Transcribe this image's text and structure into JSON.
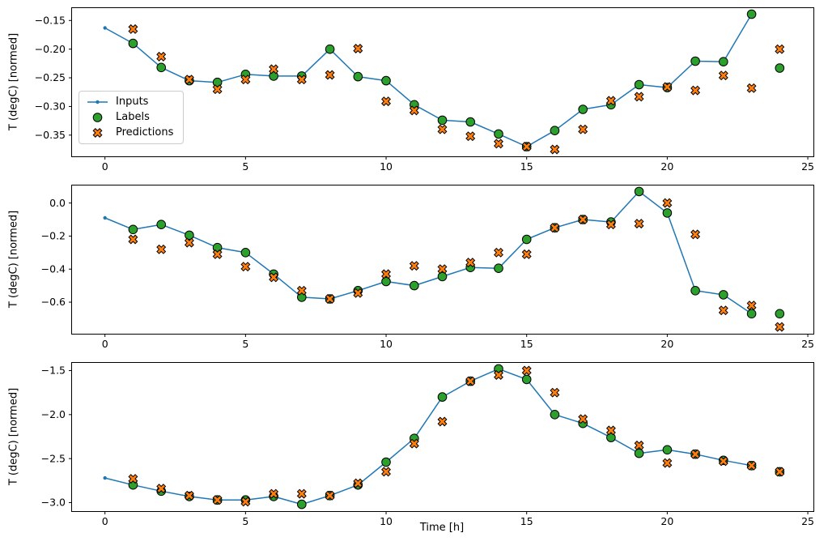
{
  "figure": {
    "background": "#ffffff"
  },
  "legend": {
    "entries": [
      {
        "label": "Inputs"
      },
      {
        "label": "Labels"
      },
      {
        "label": "Predictions"
      }
    ]
  },
  "colors": {
    "inputs": "#1f77b4",
    "labels": "#2ca02c",
    "predictions": "#ff7f0e",
    "marker_edge": "#000000"
  },
  "chart_data": [
    {
      "type": "line+scatter",
      "title": "",
      "xlabel": "",
      "ylabel": "T (degC) [normed]",
      "xlim": [
        -1.2,
        25.2
      ],
      "ylim": [
        -0.387,
        -0.127
      ],
      "xticks": [
        0,
        5,
        10,
        15,
        20,
        25
      ],
      "xtick_labels": [
        "0",
        "5",
        "10",
        "15",
        "20",
        "25"
      ],
      "yticks": [
        -0.15,
        -0.2,
        -0.25,
        -0.3,
        -0.35
      ],
      "ytick_labels": [
        "−0.15",
        "−0.20",
        "−0.25",
        "−0.30",
        "−0.35"
      ],
      "grid": false,
      "legend_position": "center-left",
      "series": [
        {
          "name": "Inputs",
          "style": "line-dot",
          "color": "#1f77b4",
          "x": [
            0,
            1,
            2,
            3,
            4,
            5,
            6,
            7,
            8,
            9,
            10,
            11,
            12,
            13,
            14,
            15,
            16,
            17,
            18,
            19,
            20,
            21,
            22,
            23
          ],
          "values": [
            -0.163,
            -0.19,
            -0.232,
            -0.255,
            -0.258,
            -0.244,
            -0.247,
            -0.247,
            -0.2,
            -0.248,
            -0.255,
            -0.297,
            -0.324,
            -0.327,
            -0.348,
            -0.37,
            -0.342,
            -0.305,
            -0.297,
            -0.262,
            -0.267,
            -0.221,
            -0.222,
            -0.139
          ]
        },
        {
          "name": "Labels",
          "style": "scatter-circle",
          "color": "#2ca02c",
          "edge": "#000000",
          "x": [
            1,
            2,
            3,
            4,
            5,
            6,
            7,
            8,
            9,
            10,
            11,
            12,
            13,
            14,
            15,
            16,
            17,
            18,
            19,
            20,
            21,
            22,
            23,
            24
          ],
          "values": [
            -0.19,
            -0.232,
            -0.255,
            -0.258,
            -0.244,
            -0.247,
            -0.247,
            -0.2,
            -0.248,
            -0.255,
            -0.297,
            -0.324,
            -0.327,
            -0.348,
            -0.37,
            -0.342,
            -0.305,
            -0.297,
            -0.262,
            -0.267,
            -0.221,
            -0.222,
            -0.139,
            -0.233
          ]
        },
        {
          "name": "Predictions",
          "style": "scatter-x",
          "color": "#ff7f0e",
          "edge": "#000000",
          "x": [
            1,
            2,
            3,
            4,
            5,
            6,
            7,
            8,
            9,
            10,
            11,
            12,
            13,
            14,
            15,
            16,
            17,
            18,
            19,
            20,
            21,
            22,
            23,
            24
          ],
          "values": [
            -0.165,
            -0.213,
            -0.253,
            -0.27,
            -0.253,
            -0.235,
            -0.253,
            -0.245,
            -0.199,
            -0.291,
            -0.307,
            -0.34,
            -0.352,
            -0.365,
            -0.37,
            -0.375,
            -0.34,
            -0.29,
            -0.283,
            -0.266,
            -0.272,
            -0.246,
            -0.268,
            -0.2
          ]
        }
      ]
    },
    {
      "type": "line+scatter",
      "title": "",
      "xlabel": "",
      "ylabel": "T (degC) [normed]",
      "xlim": [
        -1.2,
        25.2
      ],
      "ylim": [
        -0.791,
        0.111
      ],
      "xticks": [
        0,
        5,
        10,
        15,
        20,
        25
      ],
      "xtick_labels": [
        "0",
        "5",
        "10",
        "15",
        "20",
        "25"
      ],
      "yticks": [
        0.0,
        -0.2,
        -0.4,
        -0.6
      ],
      "ytick_labels": [
        "0.0",
        "−0.2",
        "−0.4",
        "−0.6"
      ],
      "grid": false,
      "legend_position": "none",
      "series": [
        {
          "name": "Inputs",
          "style": "line-dot",
          "color": "#1f77b4",
          "x": [
            0,
            1,
            2,
            3,
            4,
            5,
            6,
            7,
            8,
            9,
            10,
            11,
            12,
            13,
            14,
            15,
            16,
            17,
            18,
            19,
            20,
            21,
            22,
            23
          ],
          "values": [
            -0.09,
            -0.16,
            -0.13,
            -0.195,
            -0.27,
            -0.3,
            -0.43,
            -0.57,
            -0.58,
            -0.53,
            -0.475,
            -0.5,
            -0.445,
            -0.39,
            -0.395,
            -0.22,
            -0.15,
            -0.1,
            -0.115,
            0.07,
            -0.06,
            -0.53,
            -0.555,
            -0.67
          ]
        },
        {
          "name": "Labels",
          "style": "scatter-circle",
          "color": "#2ca02c",
          "edge": "#000000",
          "x": [
            1,
            2,
            3,
            4,
            5,
            6,
            7,
            8,
            9,
            10,
            11,
            12,
            13,
            14,
            15,
            16,
            17,
            18,
            19,
            20,
            21,
            22,
            23,
            24
          ],
          "values": [
            -0.16,
            -0.13,
            -0.195,
            -0.27,
            -0.3,
            -0.43,
            -0.57,
            -0.58,
            -0.53,
            -0.475,
            -0.5,
            -0.445,
            -0.39,
            -0.395,
            -0.22,
            -0.15,
            -0.1,
            -0.115,
            0.07,
            -0.06,
            -0.53,
            -0.555,
            -0.67,
            -0.67
          ]
        },
        {
          "name": "Predictions",
          "style": "scatter-x",
          "color": "#ff7f0e",
          "edge": "#000000",
          "x": [
            1,
            2,
            3,
            4,
            5,
            6,
            7,
            8,
            9,
            10,
            11,
            12,
            13,
            14,
            15,
            16,
            17,
            18,
            19,
            20,
            21,
            22,
            23,
            24
          ],
          "values": [
            -0.22,
            -0.28,
            -0.24,
            -0.31,
            -0.385,
            -0.45,
            -0.53,
            -0.58,
            -0.545,
            -0.43,
            -0.38,
            -0.4,
            -0.36,
            -0.3,
            -0.31,
            -0.15,
            -0.1,
            -0.13,
            -0.125,
            0.0,
            -0.19,
            -0.65,
            -0.62,
            -0.75
          ]
        }
      ]
    },
    {
      "type": "line+scatter",
      "title": "",
      "xlabel": "Time [h]",
      "ylabel": "T (degC) [normed]",
      "xlim": [
        -1.2,
        25.2
      ],
      "ylim": [
        -3.097,
        -1.403
      ],
      "xticks": [
        0,
        5,
        10,
        15,
        20,
        25
      ],
      "xtick_labels": [
        "0",
        "5",
        "10",
        "15",
        "20",
        "25"
      ],
      "yticks": [
        -1.5,
        -2.0,
        -2.5,
        -3.0
      ],
      "ytick_labels": [
        "−1.5",
        "−2.0",
        "−2.5",
        "−3.0"
      ],
      "grid": false,
      "legend_position": "none",
      "series": [
        {
          "name": "Inputs",
          "style": "line-dot",
          "color": "#1f77b4",
          "x": [
            0,
            1,
            2,
            3,
            4,
            5,
            6,
            7,
            8,
            9,
            10,
            11,
            12,
            13,
            14,
            15,
            16,
            17,
            18,
            19,
            20,
            21,
            22,
            23
          ],
          "values": [
            -2.72,
            -2.8,
            -2.87,
            -2.93,
            -2.97,
            -2.97,
            -2.93,
            -3.02,
            -2.92,
            -2.8,
            -2.54,
            -2.27,
            -1.8,
            -1.62,
            -1.48,
            -1.6,
            -2.0,
            -2.1,
            -2.26,
            -2.44,
            -2.4,
            -2.45,
            -2.52,
            -2.58
          ]
        },
        {
          "name": "Labels",
          "style": "scatter-circle",
          "color": "#2ca02c",
          "edge": "#000000",
          "x": [
            1,
            2,
            3,
            4,
            5,
            6,
            7,
            8,
            9,
            10,
            11,
            12,
            13,
            14,
            15,
            16,
            17,
            18,
            19,
            20,
            21,
            22,
            23,
            24
          ],
          "values": [
            -2.8,
            -2.87,
            -2.93,
            -2.97,
            -2.97,
            -2.93,
            -3.02,
            -2.92,
            -2.8,
            -2.54,
            -2.27,
            -1.8,
            -1.62,
            -1.48,
            -1.6,
            -2.0,
            -2.1,
            -2.26,
            -2.44,
            -2.4,
            -2.45,
            -2.52,
            -2.58,
            -2.65
          ]
        },
        {
          "name": "Predictions",
          "style": "scatter-x",
          "color": "#ff7f0e",
          "edge": "#000000",
          "x": [
            1,
            2,
            3,
            4,
            5,
            6,
            7,
            8,
            9,
            10,
            11,
            12,
            13,
            14,
            15,
            16,
            17,
            18,
            19,
            20,
            21,
            22,
            23,
            24
          ],
          "values": [
            -2.73,
            -2.84,
            -2.92,
            -2.97,
            -2.99,
            -2.9,
            -2.9,
            -2.92,
            -2.78,
            -2.65,
            -2.33,
            -2.08,
            -1.62,
            -1.55,
            -1.5,
            -1.75,
            -2.05,
            -2.18,
            -2.35,
            -2.55,
            -2.45,
            -2.53,
            -2.58,
            -2.65
          ]
        }
      ]
    }
  ]
}
